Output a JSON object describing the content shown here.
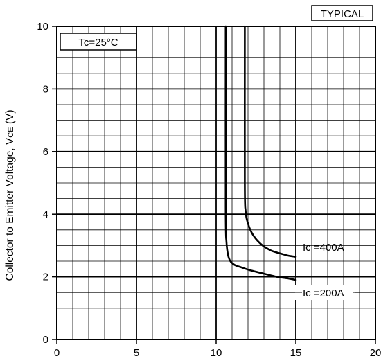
{
  "chart_data": {
    "type": "line",
    "title": "",
    "badge": "TYPICAL",
    "condition_label": "Tc=25°C",
    "ylabel": "Collector to Emitter Voltage, VCE (V)",
    "ylabel_main": "Collector to Emitter Voltage, V",
    "ylabel_sub": "CE",
    "ylabel_unit": " (V)",
    "xlabel": "",
    "xlim": [
      0,
      20
    ],
    "ylim": [
      0,
      10
    ],
    "x_ticks": [
      "0",
      "5",
      "10",
      "15",
      "20"
    ],
    "y_ticks": [
      "0",
      "2",
      "4",
      "6",
      "8",
      "10"
    ],
    "grid": true,
    "series": [
      {
        "name": "Ic =200A",
        "label": "Ic =200A",
        "x": [
          10.6,
          10.6,
          10.65,
          10.8,
          11.1,
          11.6,
          12.2,
          13.0,
          13.8,
          14.5,
          15.0
        ],
        "y": [
          10,
          4.2,
          3.1,
          2.6,
          2.4,
          2.3,
          2.2,
          2.1,
          2.0,
          1.95,
          1.9
        ]
      },
      {
        "name": "Ic =400A",
        "label": "Ic =400A",
        "x": [
          11.8,
          11.8,
          11.85,
          12.0,
          12.3,
          12.8,
          13.4,
          14.0,
          14.5,
          15.0
        ],
        "y": [
          10,
          5.0,
          4.1,
          3.7,
          3.35,
          3.05,
          2.85,
          2.75,
          2.68,
          2.64
        ]
      }
    ]
  }
}
